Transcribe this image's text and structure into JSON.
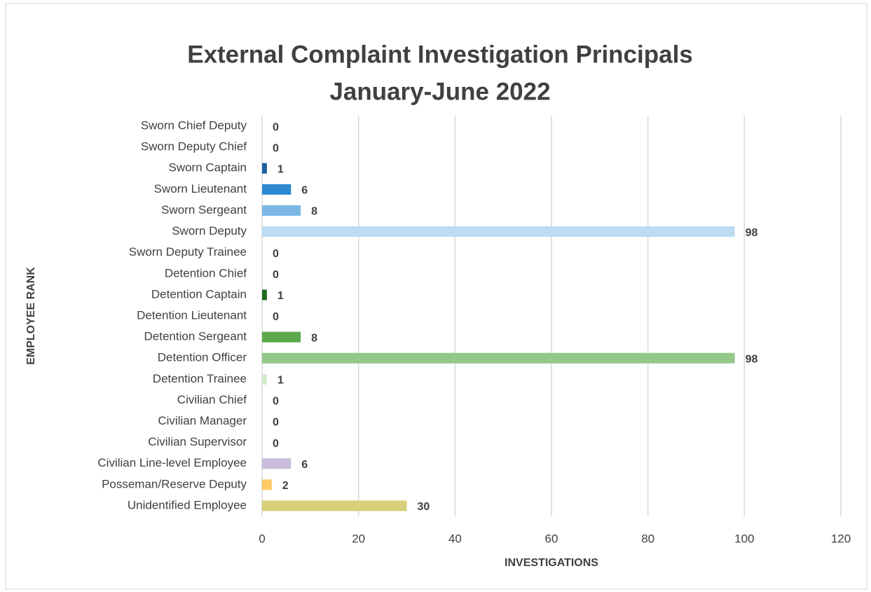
{
  "chart_data": {
    "type": "bar",
    "orientation": "horizontal",
    "title": "External Complaint Investigation Principals",
    "subtitle": "January-June 2022",
    "x_label": "INVESTIGATIONS",
    "y_label": "EMPLOYEE RANK",
    "categories": [
      "Sworn Chief Deputy",
      "Sworn Deputy Chief",
      "Sworn Captain",
      "Sworn Lieutenant",
      "Sworn Sergeant",
      "Sworn Deputy",
      "Sworn Deputy Trainee",
      "Detention Chief",
      "Detention Captain",
      "Detention Lieutenant",
      "Detention Sergeant",
      "Detention Officer",
      "Detention Trainee",
      "Civilian Chief",
      "Civilian Manager",
      "Civilian Supervisor",
      "Civilian Line-level Employee",
      "Posseman/Reserve Deputy",
      "Unidentified Employee"
    ],
    "values": [
      0,
      0,
      1,
      6,
      8,
      98,
      0,
      0,
      1,
      0,
      8,
      98,
      1,
      0,
      0,
      0,
      6,
      2,
      30
    ],
    "colors": [
      "#0d3a66",
      "#174a7e",
      "#1f5f9e",
      "#2e8ad0",
      "#7ab8e3",
      "#bcdcf2",
      "#ddeefa",
      "#0f4a0f",
      "#1e6b1e",
      "#3a8a32",
      "#5ca84c",
      "#93c88a",
      "#d3ebcd",
      "#7a5fa0",
      "#9a82bb",
      "#b3a2cb",
      "#c9bddb",
      "#ffc966",
      "#d8d07a"
    ],
    "xlim": [
      0,
      120
    ],
    "xticks": [
      0,
      20,
      40,
      60,
      80,
      100,
      120
    ],
    "grid": true
  }
}
